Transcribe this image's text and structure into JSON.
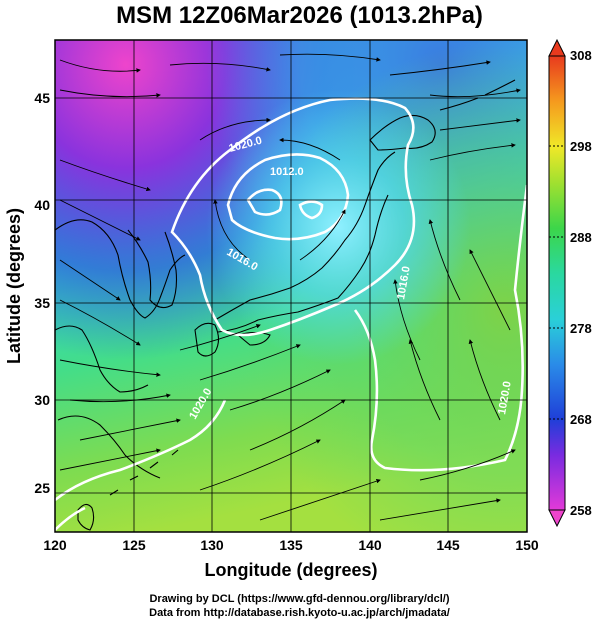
{
  "title": "MSM 12Z06Mar2026 (1013.2hPa)",
  "map": {
    "x_axis": {
      "label": "Longitude (degrees)",
      "range": [
        120,
        150
      ],
      "ticks": [
        "120",
        "125",
        "130",
        "135",
        "140",
        "145",
        "150"
      ]
    },
    "y_axis": {
      "label": "Latitude  (degrees)",
      "range": [
        22.5,
        47.5
      ],
      "ticks": [
        "25",
        "30",
        "35",
        "40",
        "45"
      ]
    },
    "contour_labels": [
      "1020.0",
      "1012.0",
      "1016.0",
      "1016.0",
      "1020.0",
      "1020.0"
    ]
  },
  "colorbar": {
    "ticks": [
      "308",
      "298",
      "288",
      "278",
      "268",
      "258"
    ],
    "range": [
      258,
      308
    ]
  },
  "credits": {
    "line1": "Drawing by DCL (https://www.gfd-dennou.org/library/dcl/)",
    "line2": "Data from http://database.rish.kyoto-u.ac.jp/arch/jmadata/"
  }
}
